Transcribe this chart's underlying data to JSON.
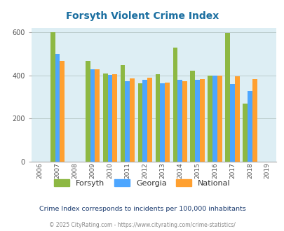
{
  "title": "Forsyth Violent Crime Index",
  "subtitle": "Crime Index corresponds to incidents per 100,000 inhabitants",
  "footer": "© 2025 CityRating.com - https://www.cityrating.com/crime-statistics/",
  "years": [
    2006,
    2007,
    2008,
    2009,
    2010,
    2011,
    2012,
    2013,
    2014,
    2015,
    2016,
    2017,
    2018,
    2019
  ],
  "data_years": [
    2007,
    2009,
    2010,
    2011,
    2012,
    2013,
    2014,
    2015,
    2016,
    2017,
    2018
  ],
  "forsyth": [
    598,
    468,
    408,
    447,
    362,
    405,
    527,
    422,
    398,
    597,
    270
  ],
  "georgia": [
    500,
    427,
    402,
    373,
    378,
    362,
    380,
    378,
    400,
    360,
    328
  ],
  "national": [
    467,
    428,
    405,
    387,
    388,
    365,
    373,
    383,
    400,
    395,
    383
  ],
  "forsyth_color": "#8DB843",
  "georgia_color": "#4DA6FF",
  "national_color": "#FFA030",
  "bg_color": "#ddeef4",
  "title_color": "#1a6ea0",
  "subtitle_color": "#1a3a6e",
  "footer_color": "#888888",
  "ylim": [
    0,
    620
  ],
  "yticks": [
    0,
    200,
    400,
    600
  ],
  "bar_width": 0.27,
  "grid_color": "#bbcccc"
}
